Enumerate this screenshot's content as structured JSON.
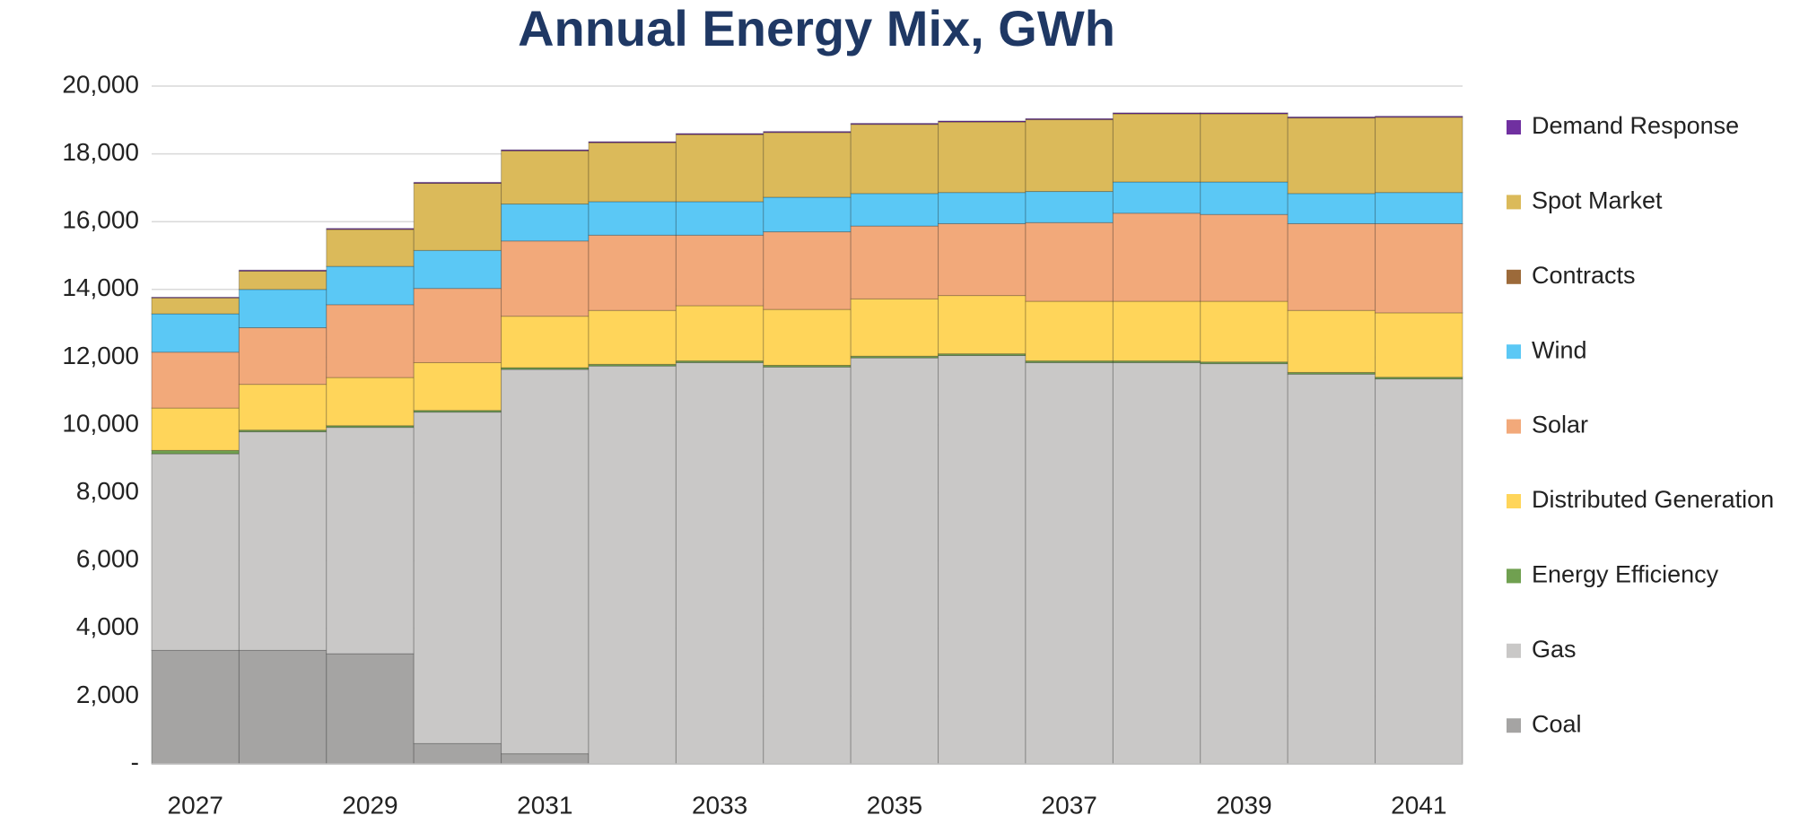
{
  "chart_data": {
    "type": "stacked_bar",
    "title": "Annual Energy Mix, GWh",
    "categories": [
      "2027",
      null,
      "2029",
      null,
      "2031",
      null,
      "2033",
      null,
      "2035",
      null,
      "2037",
      null,
      "2039",
      null,
      "2041"
    ],
    "series": [
      {
        "name": "Coal",
        "color": "#a5a4a3",
        "values": [
          3350,
          3350,
          3250,
          600,
          300,
          0,
          0,
          0,
          0,
          0,
          0,
          0,
          0,
          0,
          0
        ]
      },
      {
        "name": "Gas",
        "color": "#c9c8c7",
        "values": [
          5800,
          6450,
          6680,
          9780,
          11340,
          11740,
          11840,
          11710,
          11980,
          12050,
          11840,
          11840,
          11810,
          11500,
          11360
        ]
      },
      {
        "name": "Energy Efficiency",
        "color": "#70a050",
        "values": [
          100,
          50,
          50,
          50,
          50,
          50,
          50,
          50,
          50,
          50,
          50,
          50,
          50,
          50,
          50
        ]
      },
      {
        "name": "Distributed Generation",
        "color": "#ffd55a",
        "values": [
          1250,
          1350,
          1420,
          1410,
          1520,
          1590,
          1630,
          1650,
          1690,
          1720,
          1760,
          1760,
          1790,
          1830,
          1900
        ]
      },
      {
        "name": "Solar",
        "color": "#f2a97a",
        "values": [
          1650,
          1670,
          2150,
          2190,
          2220,
          2220,
          2080,
          2290,
          2150,
          2120,
          2320,
          2600,
          2560,
          2560,
          2630
        ]
      },
      {
        "name": "Wind",
        "color": "#5bc8f5",
        "values": [
          1130,
          1130,
          1130,
          1120,
          1090,
          990,
          990,
          1020,
          960,
          920,
          920,
          920,
          960,
          890,
          920
        ]
      },
      {
        "name": "Contracts",
        "color": "#9c6a3a",
        "values": [
          0,
          0,
          0,
          0,
          0,
          0,
          0,
          0,
          0,
          0,
          0,
          0,
          0,
          0,
          0
        ]
      },
      {
        "name": "Spot Market",
        "color": "#dbba5a",
        "values": [
          470,
          540,
          1090,
          1980,
          1570,
          1740,
          1980,
          1910,
          2040,
          2080,
          2120,
          2010,
          2010,
          2230,
          2220
        ]
      },
      {
        "name": "Demand Response",
        "color": "#7030a0",
        "values": [
          20,
          30,
          30,
          30,
          30,
          30,
          30,
          30,
          30,
          30,
          30,
          30,
          30,
          30,
          30
        ]
      }
    ],
    "ylim": [
      0,
      20000
    ],
    "yticks": [
      {
        "value": 0,
        "label": "-"
      },
      {
        "value": 2000,
        "label": "2,000"
      },
      {
        "value": 4000,
        "label": "4,000"
      },
      {
        "value": 6000,
        "label": "6,000"
      },
      {
        "value": 8000,
        "label": "8,000"
      },
      {
        "value": 10000,
        "label": "10,000"
      },
      {
        "value": 12000,
        "label": "12,000"
      },
      {
        "value": 14000,
        "label": "14,000"
      },
      {
        "value": 16000,
        "label": "16,000"
      },
      {
        "value": 18000,
        "label": "18,000"
      },
      {
        "value": 20000,
        "label": "20,000"
      }
    ],
    "grid": true,
    "legend": "right"
  }
}
